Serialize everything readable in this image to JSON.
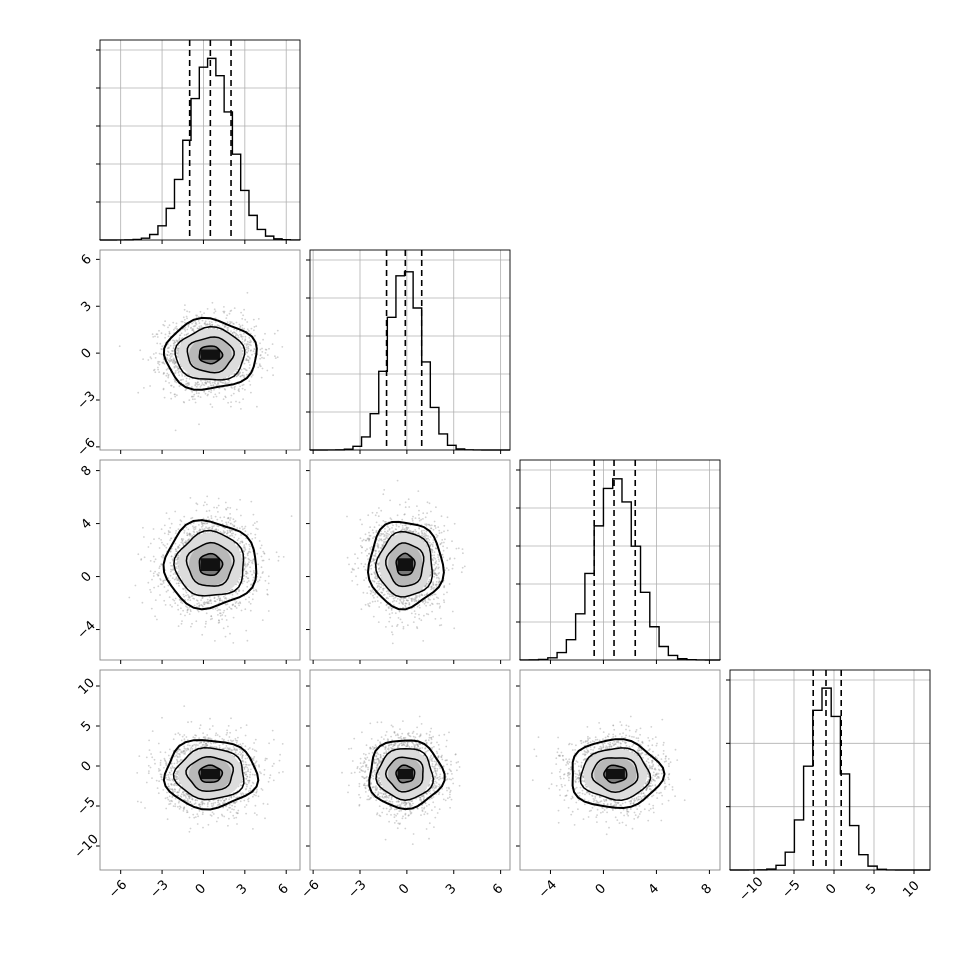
{
  "chart_data": {
    "type": "corner",
    "params": [
      {
        "range": [
          -7.5,
          7.0
        ],
        "ticks": [
          -6,
          -3,
          0,
          3,
          6
        ],
        "tick_labels": [
          "−6",
          "−3",
          "0",
          "3",
          "6"
        ],
        "center": 0.5,
        "sigma": 1.55,
        "quantiles": [
          -1.0,
          0.5,
          2.0
        ],
        "hist_max": 0.275,
        "hist_step": 0.6,
        "hist_y_ticks": 5
      },
      {
        "range": [
          -6.2,
          6.6
        ],
        "ticks": [
          -6,
          -3,
          0,
          3,
          6
        ],
        "tick_labels": [
          "−6",
          "−3",
          "0",
          "3",
          "6"
        ],
        "center": -0.1,
        "sigma": 1.1,
        "quantiles": [
          -1.3,
          -0.1,
          0.95
        ],
        "hist_max": 0.39,
        "hist_step": 0.55,
        "hist_y_ticks": 5
      },
      {
        "range": [
          -6.3,
          8.8
        ],
        "ticks": [
          -4,
          0,
          4,
          8
        ],
        "tick_labels": [
          "−4",
          "0",
          "4",
          "8"
        ],
        "center": 0.9,
        "sigma": 1.6,
        "quantiles": [
          -0.7,
          0.8,
          2.4
        ],
        "hist_max": 0.245,
        "hist_step": 0.7,
        "hist_y_ticks": 5
      },
      {
        "range": [
          -13.0,
          12.0
        ],
        "ticks": [
          -10,
          -5,
          0,
          5,
          10
        ],
        "tick_labels": [
          "−10",
          "−5",
          "0",
          "5",
          "10"
        ],
        "center": -1.0,
        "sigma": 2.1,
        "quantiles": [
          -2.6,
          -1.0,
          0.9
        ],
        "hist_max": 0.187,
        "hist_step": 1.15,
        "hist_y_ticks": 3
      }
    ],
    "pair_y_ticks": {
      "1": {
        "ticks": [
          -6,
          -3,
          0,
          3,
          6
        ],
        "labels": [
          "−6",
          "−3",
          "0",
          "3",
          "6"
        ]
      },
      "2": {
        "ticks": [
          -4,
          0,
          4,
          8
        ],
        "labels": [
          "−4",
          "0",
          "4",
          "8"
        ]
      },
      "3": {
        "ticks": [
          -10,
          -5,
          0,
          5,
          10
        ],
        "labels": [
          "−10",
          "−5",
          "0",
          "5",
          "10"
        ]
      }
    },
    "contour_levels_sigma": [
      0.5,
      1.0,
      1.5,
      2.0
    ],
    "grid": true,
    "colors": {
      "axes": "#000000",
      "grid": "#b0b0b0",
      "points": "#9a9a9a",
      "hist": "#000000"
    }
  }
}
